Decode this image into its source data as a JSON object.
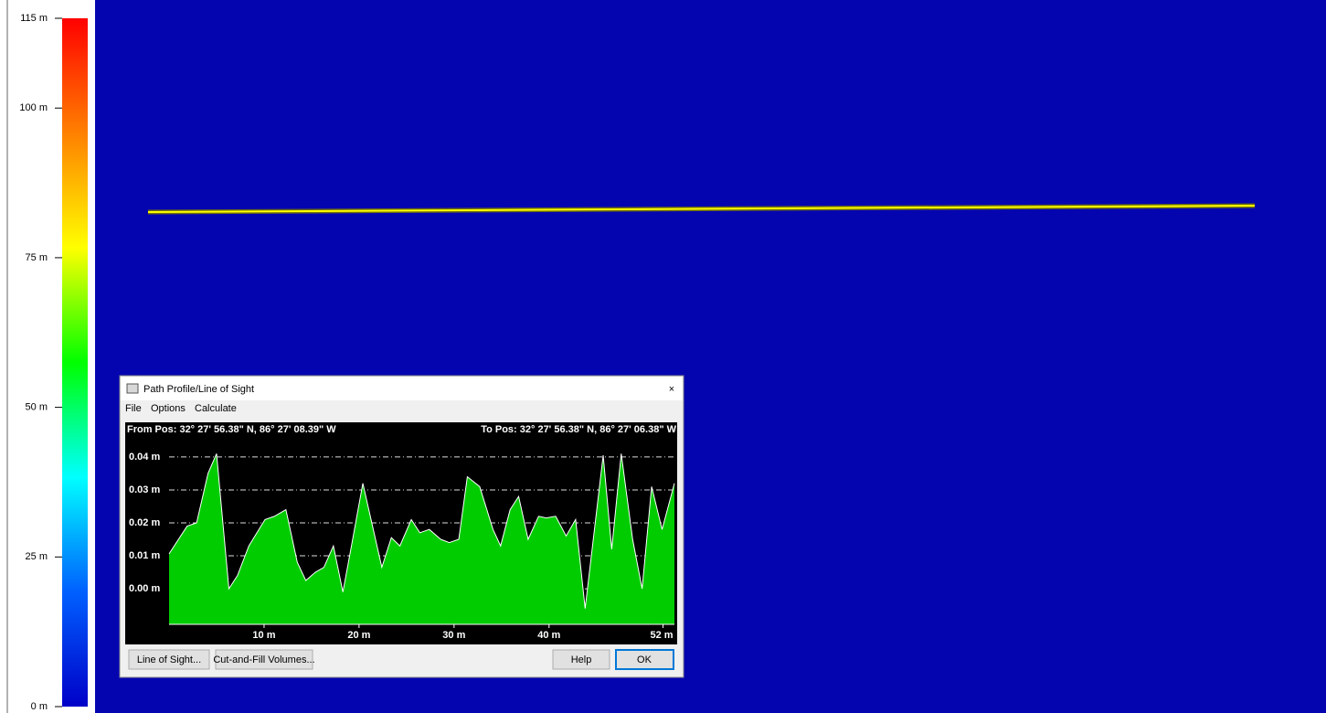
{
  "legend": {
    "ylim": [
      0,
      115
    ],
    "yticks": [
      {
        "value": 0,
        "label": "0 m"
      },
      {
        "value": 25,
        "label": "25 m"
      },
      {
        "value": 50,
        "label": "50 m"
      },
      {
        "value": 75,
        "label": "75 m"
      },
      {
        "value": 100,
        "label": "100 m"
      },
      {
        "value": 115,
        "label": "115 m"
      }
    ],
    "colors": [
      "#0000c8",
      "#0060ff",
      "#00ffff",
      "#00ff00",
      "#ffff00",
      "#ff8000",
      "#ff0000"
    ]
  },
  "dialog": {
    "title": "Path Profile/Line of Sight",
    "menu": [
      "File",
      "Options",
      "Calculate"
    ],
    "buttons": [
      "Line of Sight...",
      "Cut-and-Fill Volumes...",
      "Help",
      "OK"
    ]
  },
  "chart_data": {
    "type": "area",
    "from_label": "From Pos: 32° 27' 56.38\" N, 86° 27' 08.39\" W",
    "to_label": "To Pos: 32° 27' 56.38\" N, 86° 27' 06.38\" W",
    "x": [
      0,
      1.9,
      2.9,
      4.1,
      5.0,
      6.3,
      7.2,
      8.4,
      10.1,
      11.1,
      12.3,
      13.5,
      14.4,
      15.4,
      16.3,
      17.3,
      18.3,
      19.2,
      20.4,
      22.4,
      23.4,
      24.3,
      25.5,
      26.4,
      27.4,
      28.6,
      29.5,
      30.5,
      31.4,
      32.7,
      34.1,
      34.9,
      35.9,
      36.8,
      37.8,
      38.9,
      39.7,
      40.7,
      41.8,
      42.8,
      43.8,
      45.7,
      46.6,
      47.6,
      48.8,
      49.8,
      50.8,
      51.9,
      53.2
    ],
    "values": [
      0.0106,
      0.019,
      0.02,
      0.035,
      0.041,
      0.0,
      0.004,
      0.013,
      0.021,
      0.022,
      0.024,
      0.008,
      0.0025,
      0.005,
      0.0065,
      0.013,
      -0.001,
      0.013,
      0.032,
      0.0065,
      0.0155,
      0.013,
      0.021,
      0.017,
      0.018,
      0.015,
      0.014,
      0.015,
      0.034,
      0.031,
      0.018,
      0.013,
      0.024,
      0.028,
      0.015,
      0.022,
      0.0215,
      0.022,
      0.016,
      0.021,
      -0.006,
      0.0405,
      0.012,
      0.041,
      0.015,
      0.0,
      0.031,
      0.018,
      0.032
    ],
    "xlim": [
      0,
      53.2
    ],
    "ylim": [
      -0.0108,
      0.0433
    ],
    "xticks": [
      {
        "value": 10,
        "label": "10 m"
      },
      {
        "value": 20,
        "label": "20 m"
      },
      {
        "value": 30,
        "label": "30 m"
      },
      {
        "value": 40,
        "label": "40 m"
      },
      {
        "value": 52,
        "label": "52 m"
      }
    ],
    "yticks": [
      {
        "value": 0,
        "label": "0.00 m"
      },
      {
        "value": 0.01,
        "label": "0.01 m"
      },
      {
        "value": 0.02,
        "label": "0.02 m"
      },
      {
        "value": 0.03,
        "label": "0.03 m"
      },
      {
        "value": 0.04,
        "label": "0.04 m"
      }
    ],
    "color": "#00cc00",
    "grid": true
  }
}
